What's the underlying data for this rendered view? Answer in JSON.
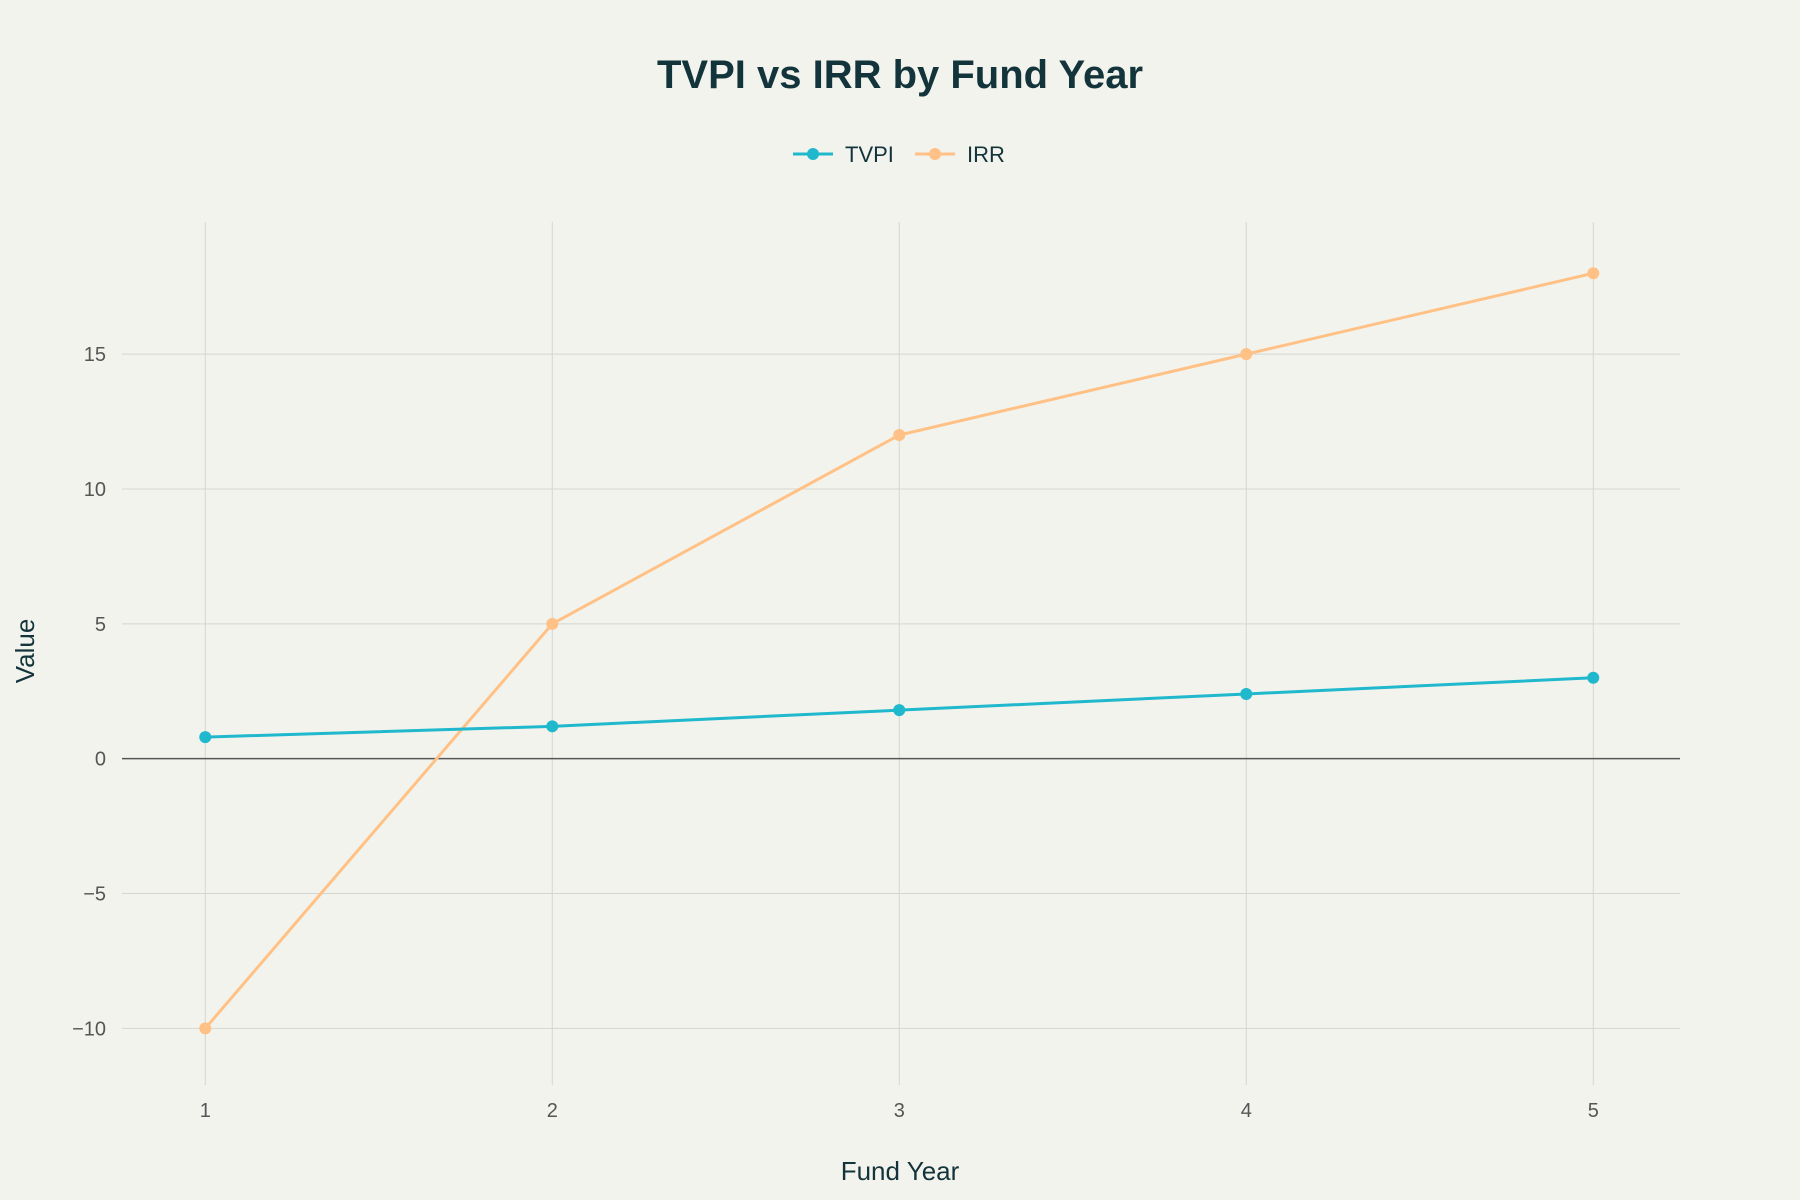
{
  "chart_data": {
    "type": "line",
    "title": "TVPI vs IRR by Fund Year",
    "xlabel": "Fund Year",
    "ylabel": "Value",
    "x": [
      1,
      2,
      3,
      4,
      5
    ],
    "xlim": [
      0.76,
      5.25
    ],
    "ylim": [
      -12.1,
      19.9
    ],
    "xticks": [
      1,
      2,
      3,
      4,
      5
    ],
    "yticks": [
      -10,
      -5,
      0,
      5,
      10,
      15
    ],
    "ytick_labels": [
      "−10",
      "−5",
      "0",
      "5",
      "10",
      "15"
    ],
    "grid": true,
    "legend_position": "top-center",
    "series": [
      {
        "name": "TVPI",
        "color": "#1fb8cd",
        "values": [
          0.8,
          1.2,
          1.8,
          2.4,
          3.0
        ]
      },
      {
        "name": "IRR",
        "color": "#ffc185",
        "values": [
          -10,
          5,
          12,
          15,
          18
        ]
      }
    ]
  }
}
